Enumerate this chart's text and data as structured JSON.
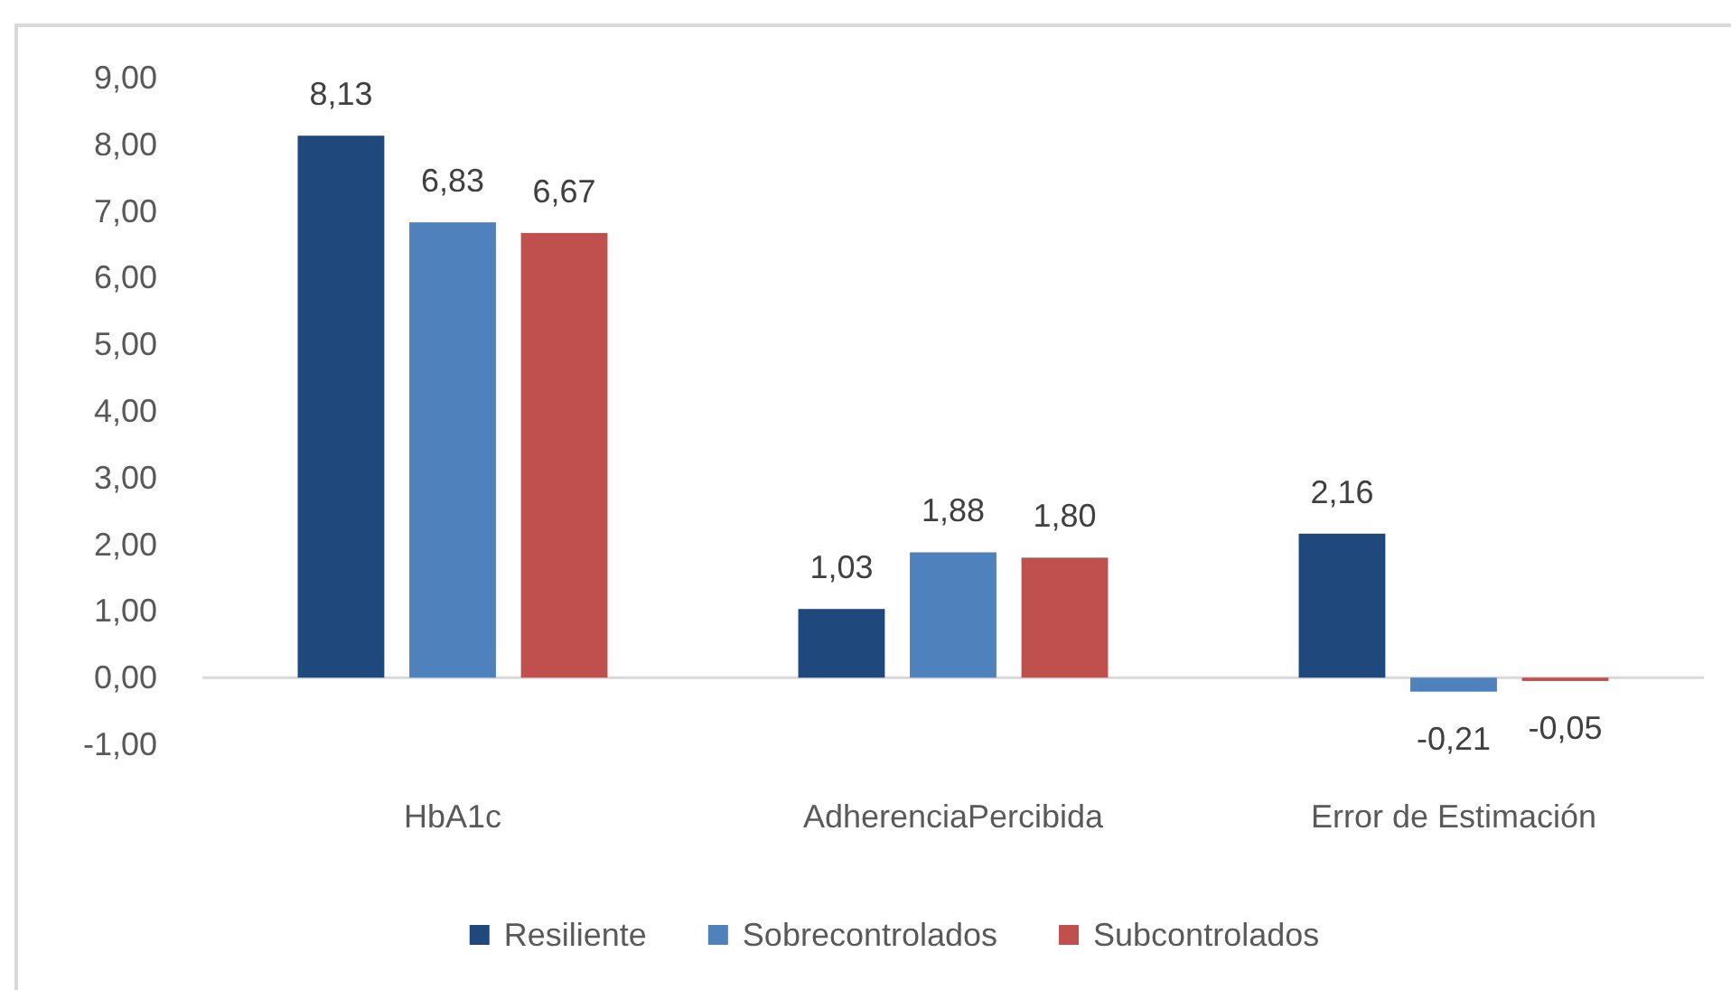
{
  "chart_data": {
    "type": "bar",
    "categories": [
      "HbA1c",
      "AdherenciaPercibida",
      "Error de Estimación"
    ],
    "series": [
      {
        "name": "Resiliente",
        "color": "#1f497d",
        "values": [
          8.13,
          1.03,
          2.16
        ],
        "value_labels": [
          "8,13",
          "1,03",
          "2,16"
        ]
      },
      {
        "name": "Sobrecontrolados",
        "color": "#4f81bd",
        "values": [
          6.83,
          1.88,
          -0.21
        ],
        "value_labels": [
          "6,83",
          "1,88",
          "-0,21"
        ]
      },
      {
        "name": "Subcontrolados",
        "color": "#c0504d",
        "values": [
          6.67,
          1.8,
          -0.05
        ],
        "value_labels": [
          "6,67",
          "1,80",
          "-0,05"
        ]
      }
    ],
    "ylim": [
      -1,
      9
    ],
    "yticks": [
      {
        "value": -1,
        "label": "-1,00"
      },
      {
        "value": 0,
        "label": "0,00"
      },
      {
        "value": 1,
        "label": "1,00"
      },
      {
        "value": 2,
        "label": "2,00"
      },
      {
        "value": 3,
        "label": "3,00"
      },
      {
        "value": 4,
        "label": "4,00"
      },
      {
        "value": 5,
        "label": "5,00"
      },
      {
        "value": 6,
        "label": "6,00"
      },
      {
        "value": 7,
        "label": "7,00"
      },
      {
        "value": 8,
        "label": "8,00"
      },
      {
        "value": 9,
        "label": "9,00"
      }
    ],
    "legend": "bottom"
  }
}
